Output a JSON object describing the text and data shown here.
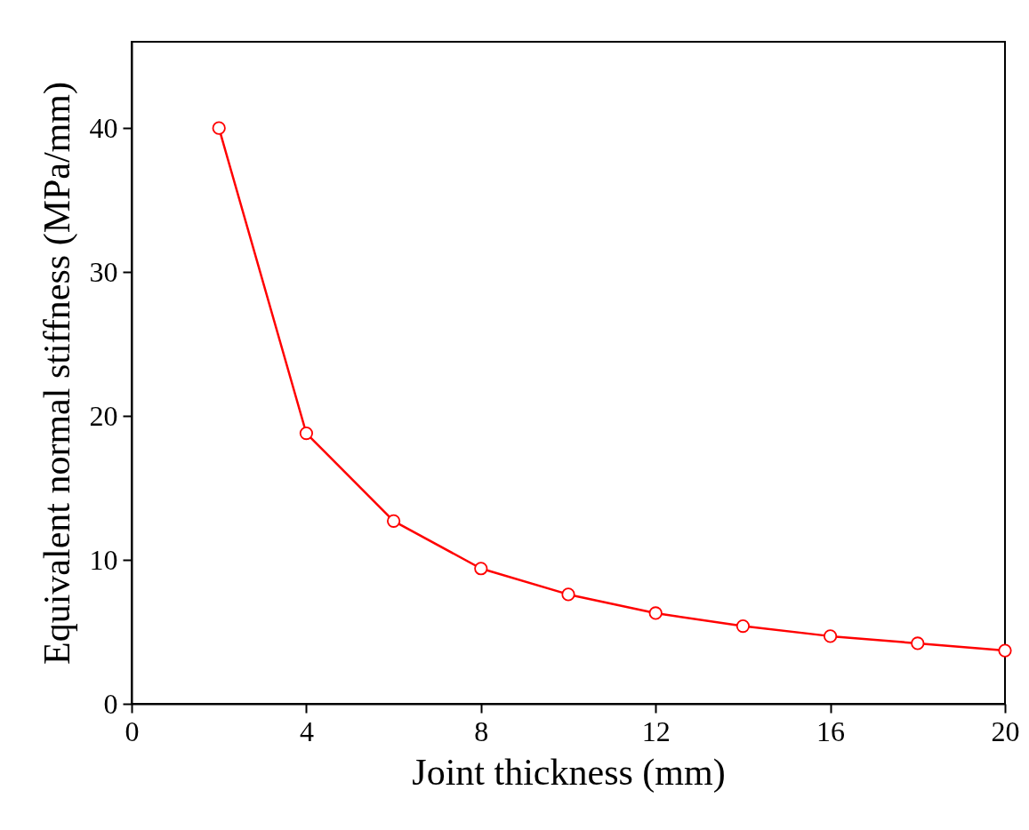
{
  "chart_data": {
    "type": "line",
    "xlabel": "Joint thickness (mm)",
    "ylabel": "Equivalent normal stiffness (MPa/mm)",
    "x": [
      2,
      4,
      6,
      8,
      10,
      12,
      14,
      16,
      18,
      20
    ],
    "series": [
      {
        "color": "#ff0000",
        "values": [
          40,
          18.8,
          12.7,
          9.4,
          7.6,
          6.3,
          5.4,
          4.7,
          4.2,
          3.7
        ]
      }
    ],
    "xlim": [
      0,
      20
    ],
    "xticks": [
      0,
      4,
      8,
      12,
      16,
      20
    ],
    "ylim": [
      0,
      46
    ],
    "yticks": [
      0,
      10,
      20,
      30,
      40
    ],
    "grid": false,
    "legend": false,
    "marker": "circle",
    "line_style": "solid"
  }
}
